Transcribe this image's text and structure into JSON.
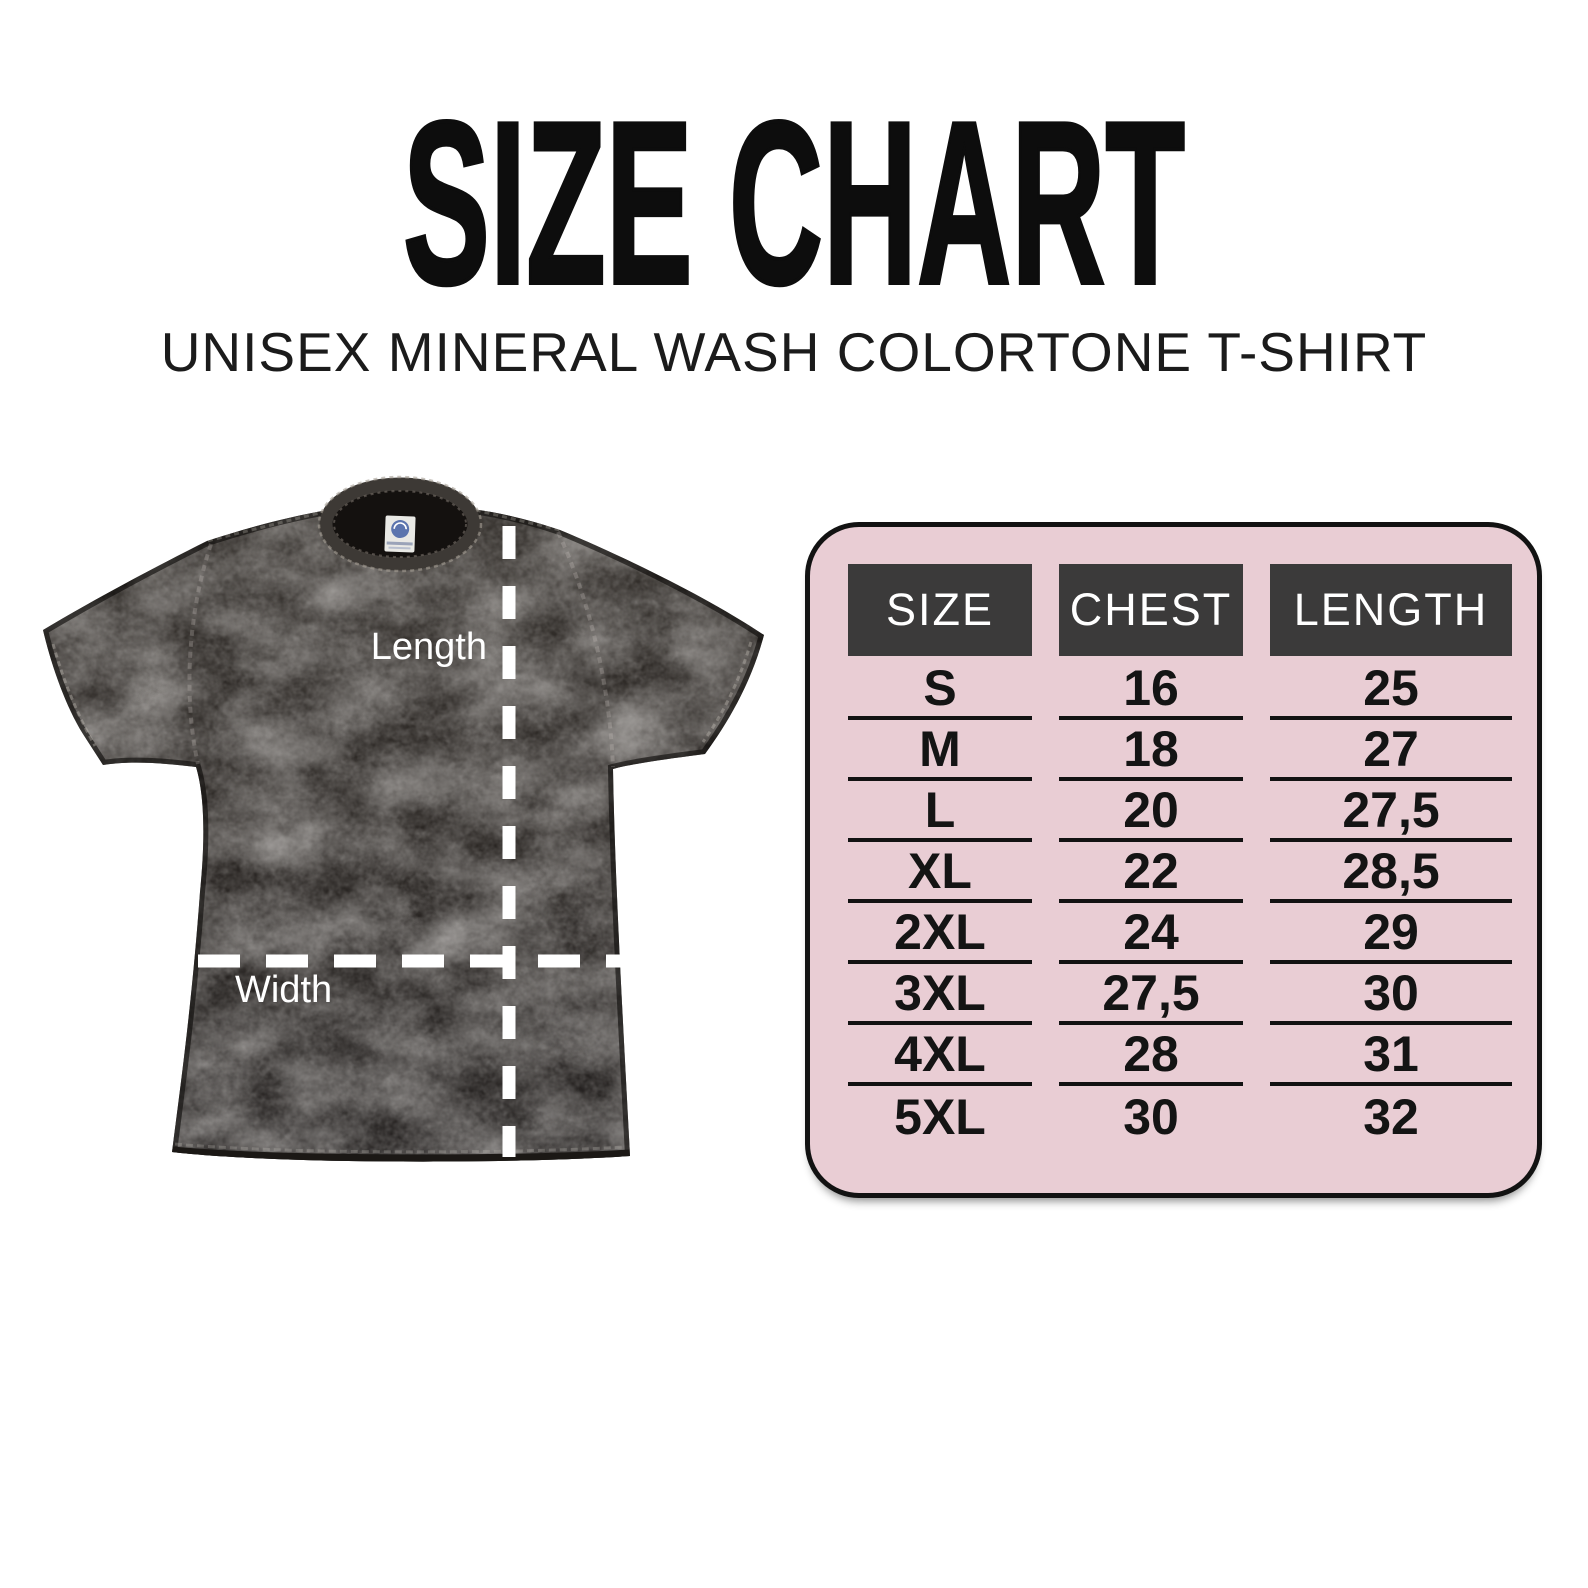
{
  "header": {
    "title": "SIZE CHART",
    "subtitle": "UNISEX MINERAL WASH COLORTONE T-SHIRT"
  },
  "diagram": {
    "length_label": "Length",
    "width_label": "Width"
  },
  "size_table": {
    "columns": [
      "SIZE",
      "CHEST",
      "LENGTH"
    ],
    "rows": [
      [
        "S",
        "16",
        "25"
      ],
      [
        "M",
        "18",
        "27"
      ],
      [
        "L",
        "20",
        "27,5"
      ],
      [
        "XL",
        "22",
        "28,5"
      ],
      [
        "2XL",
        "24",
        "29"
      ],
      [
        "3XL",
        "27,5",
        "30"
      ],
      [
        "4XL",
        "28",
        "31"
      ],
      [
        "5XL",
        "30",
        "32"
      ]
    ]
  },
  "colors": {
    "table_panel_bg": "#e9cdd4",
    "table_header_bg": "#3b3a3a",
    "table_header_text": "#ffffff",
    "table_border": "#121212",
    "text": "#141414",
    "measure_line": "#ffffff",
    "shirt_base": "#2b2724"
  },
  "chart_data": {
    "type": "table",
    "title": "SIZE CHART",
    "subtitle": "UNISEX MINERAL WASH COLORTONE T-SHIRT",
    "columns": [
      "SIZE",
      "CHEST",
      "LENGTH"
    ],
    "rows": [
      [
        "S",
        "16",
        "25"
      ],
      [
        "M",
        "18",
        "27"
      ],
      [
        "L",
        "20",
        "27,5"
      ],
      [
        "XL",
        "22",
        "28,5"
      ],
      [
        "2XL",
        "24",
        "29"
      ],
      [
        "3XL",
        "27,5",
        "30"
      ],
      [
        "4XL",
        "28",
        "31"
      ],
      [
        "5XL",
        "30",
        "32"
      ]
    ],
    "notes": "Measurement diagram shows Length (vertical dashed line) and Width (horizontal dashed line) on a black mineral-wash t-shirt photo."
  }
}
